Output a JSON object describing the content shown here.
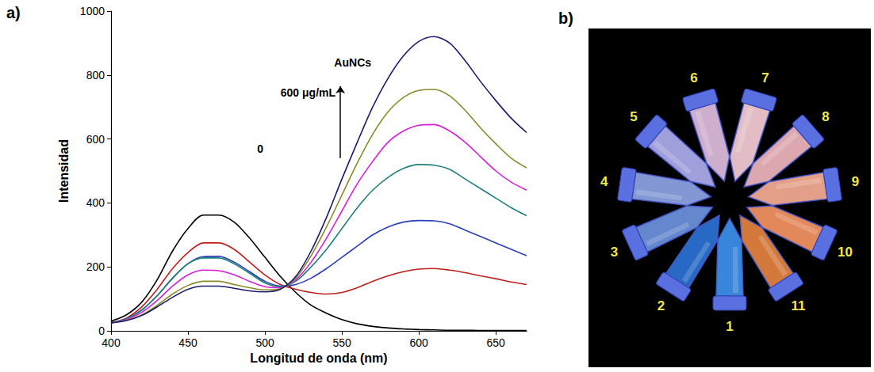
{
  "chart_data": {
    "type": "line",
    "panel_label": "a)",
    "x_label": "Longitud de onda (nm)",
    "y_label": "Intensidad",
    "x": [
      400,
      410,
      420,
      430,
      440,
      450,
      460,
      470,
      480,
      490,
      500,
      510,
      520,
      530,
      540,
      550,
      560,
      570,
      580,
      590,
      600,
      610,
      620,
      630,
      640,
      650,
      660,
      670
    ],
    "xlim": [
      400,
      670
    ],
    "xticks": [
      400,
      450,
      500,
      550,
      600,
      650
    ],
    "ylim": [
      0,
      1000
    ],
    "yticks": [
      0,
      200,
      400,
      600,
      800,
      1000
    ],
    "grid": false,
    "series": [
      {
        "color": "#000000",
        "values": [
          30,
          50,
          90,
          160,
          250,
          320,
          362,
          362,
          340,
          290,
          230,
          170,
          120,
          80,
          55,
          35,
          22,
          14,
          9,
          6,
          4,
          3,
          2,
          2,
          1,
          1,
          1,
          1
        ]
      },
      {
        "color": "#c0201c",
        "values": [
          25,
          40,
          75,
          130,
          195,
          245,
          275,
          275,
          255,
          215,
          175,
          145,
          130,
          120,
          115,
          120,
          135,
          155,
          172,
          185,
          193,
          195,
          190,
          182,
          172,
          163,
          153,
          145
        ]
      },
      {
        "color": "#2b3fb8",
        "values": [
          25,
          38,
          65,
          110,
          165,
          210,
          232,
          233,
          215,
          185,
          155,
          140,
          145,
          165,
          195,
          230,
          265,
          300,
          325,
          340,
          345,
          344,
          335,
          315,
          295,
          275,
          255,
          235
        ]
      },
      {
        "color": "#1f7f7f",
        "values": [
          25,
          38,
          65,
          110,
          165,
          210,
          228,
          228,
          210,
          180,
          150,
          138,
          155,
          200,
          255,
          320,
          385,
          440,
          480,
          508,
          520,
          518,
          505,
          475,
          445,
          415,
          385,
          360
        ]
      },
      {
        "color": "#d81ed8",
        "values": [
          25,
          35,
          58,
          95,
          140,
          175,
          190,
          188,
          175,
          155,
          138,
          135,
          160,
          215,
          290,
          375,
          460,
          530,
          590,
          625,
          643,
          645,
          625,
          590,
          545,
          500,
          465,
          440
        ]
      },
      {
        "color": "#8a8a2a",
        "values": [
          25,
          33,
          50,
          80,
          115,
          142,
          155,
          155,
          145,
          135,
          128,
          132,
          165,
          235,
          325,
          425,
          525,
          615,
          685,
          730,
          752,
          755,
          735,
          690,
          635,
          585,
          540,
          510
        ]
      },
      {
        "color": "#1a1a6e",
        "values": [
          25,
          32,
          48,
          75,
          105,
          130,
          140,
          140,
          133,
          125,
          122,
          130,
          170,
          250,
          355,
          475,
          590,
          700,
          790,
          860,
          905,
          920,
          900,
          845,
          780,
          720,
          665,
          620
        ]
      }
    ],
    "annotations": [
      {
        "text": "AuNCs",
        "x": 557,
        "y": 838
      },
      {
        "text": "600 μg/mL",
        "x": 528,
        "y": 745
      },
      {
        "text": "0",
        "x": 497,
        "y": 570
      }
    ],
    "arrow": [
      [
        549,
        540
      ],
      [
        549,
        765
      ]
    ]
  },
  "photo": {
    "panel_label": "b)",
    "tubes": [
      {
        "label": "1",
        "color": "#3a8ee8"
      },
      {
        "label": "2",
        "color": "#2a6fd0"
      },
      {
        "label": "3",
        "color": "#6a8fd8"
      },
      {
        "label": "4",
        "color": "#8aa0e0"
      },
      {
        "label": "5",
        "color": "#a8a8e8"
      },
      {
        "label": "6",
        "color": "#d8b8d8"
      },
      {
        "label": "7",
        "color": "#f0c8d0"
      },
      {
        "label": "8",
        "color": "#e8b0b8"
      },
      {
        "label": "9",
        "color": "#f0a890"
      },
      {
        "label": "10",
        "color": "#f09060"
      },
      {
        "label": "11",
        "color": "#e08040"
      }
    ]
  }
}
